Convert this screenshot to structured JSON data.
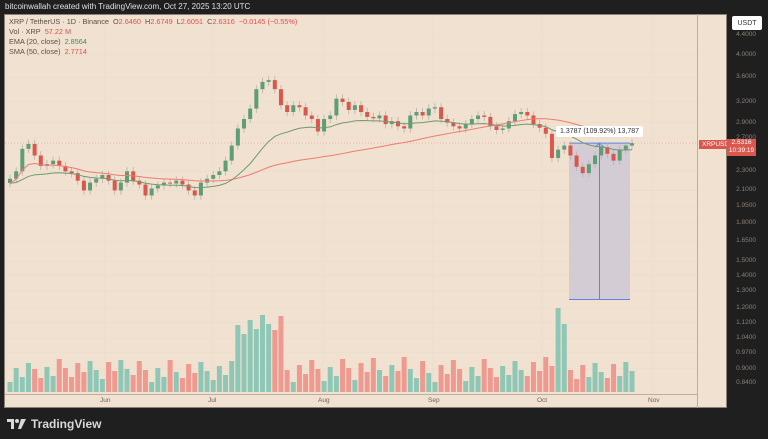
{
  "header": {
    "attribution": "bitcoinwallah created with TradingView.com, Oct 27, 2025 13:20 UTC"
  },
  "legend": {
    "symbol": "XRP / TetherUS · 1D · Binance",
    "open_label": "O",
    "open": "2.6460",
    "high_label": "H",
    "high": "2.6749",
    "low_label": "L",
    "low": "2.6051",
    "close_label": "C",
    "close": "2.6316",
    "change": "−0.0145 (−0.55%)",
    "volume_label": "Vol · XRP",
    "volume": "57.22 M",
    "ema_label": "EMA (20, close)",
    "ema": "2.8564",
    "sma_label": "SMA (50, close)",
    "sma": "2.7714"
  },
  "price_axis": {
    "currency_button": "USDT",
    "ticks": [
      "4.4000",
      "4.0000",
      "3.6000",
      "3.2000",
      "2.9000",
      "2.7000",
      "2.3000",
      "2.1000",
      "1.9500",
      "1.8000",
      "1.6500",
      "1.5000",
      "1.4000",
      "1.3000",
      "1.2000",
      "1.1200",
      "1.0400",
      "0.9700",
      "0.9000",
      "0.8400"
    ],
    "last_price_tag": {
      "symbol": "XRPUSDT",
      "price": "2.6316",
      "countdown": "10:39:19"
    }
  },
  "time_axis": {
    "labels": [
      "Jun",
      "Jul",
      "Aug",
      "Sep",
      "Oct",
      "Nov"
    ]
  },
  "measure_tool": {
    "label": "1.3787 (109.92%) 13,787"
  },
  "footer": {
    "brand": "TradingView"
  },
  "colors": {
    "up": "#5d9e77",
    "down": "#d9574c",
    "volume_up": "#8fc7b6",
    "volume_down": "#ef9a90",
    "ema": "#6f9a6f",
    "sma": "#ef7b72",
    "measure_fill": "#cfc8d6",
    "measure_line": "#5b84e6",
    "background": "#f1e1d0"
  },
  "chart_data": {
    "type": "candlestick",
    "title": "XRP / TetherUS · 1D · Binance",
    "x_labels": [
      "Jun",
      "Jul",
      "Aug",
      "Sep",
      "Oct",
      "Nov"
    ],
    "ylabel": "USDT",
    "y_scale": "log",
    "ylim": [
      0.84,
      4.4
    ],
    "y_ticks": [
      4.4,
      4.0,
      3.6,
      3.2,
      2.9,
      2.7,
      2.3,
      2.1,
      1.95,
      1.8,
      1.65,
      1.5,
      1.4,
      1.3,
      1.2,
      1.12,
      1.04,
      0.97,
      0.9,
      0.84
    ],
    "series": [
      {
        "name": "XRP close (approx, daily)",
        "values": [
          2.22,
          2.3,
          2.56,
          2.62,
          2.48,
          2.36,
          2.38,
          2.42,
          2.36,
          2.3,
          2.28,
          2.2,
          2.1,
          2.18,
          2.22,
          2.26,
          2.2,
          2.1,
          2.18,
          2.3,
          2.2,
          2.16,
          2.05,
          2.12,
          2.15,
          2.18,
          2.17,
          2.2,
          2.16,
          2.1,
          2.05,
          2.18,
          2.22,
          2.26,
          2.3,
          2.42,
          2.6,
          2.82,
          2.95,
          3.1,
          3.4,
          3.52,
          3.55,
          3.4,
          3.15,
          3.05,
          3.15,
          3.12,
          3.0,
          2.95,
          2.78,
          2.95,
          3.0,
          3.25,
          3.2,
          3.08,
          3.15,
          3.05,
          2.98,
          2.96,
          3.0,
          2.88,
          2.92,
          2.85,
          2.82,
          3.0,
          3.05,
          3.0,
          3.1,
          3.12,
          2.95,
          2.9,
          2.85,
          2.82,
          2.88,
          2.95,
          3.0,
          2.98,
          2.85,
          2.8,
          2.82,
          2.92,
          3.02,
          3.05,
          3.0,
          2.88,
          2.83,
          2.75,
          2.45,
          2.55,
          2.6,
          2.48,
          2.35,
          2.28,
          2.38,
          2.48,
          2.58,
          2.5,
          2.42,
          2.55,
          2.6,
          2.63
        ]
      },
      {
        "name": "EMA (20, close)",
        "last": 2.8564
      },
      {
        "name": "SMA (50, close)",
        "last": 2.7714
      },
      {
        "name": "Volume",
        "last": "57.22 M"
      }
    ],
    "annotations": [
      {
        "type": "measure",
        "text": "1.3787 (109.92%) 13,787",
        "from_price": 1.25,
        "to_price": 2.63
      }
    ],
    "last_price": 2.6316,
    "legend_position": "top-left",
    "grid": true
  }
}
